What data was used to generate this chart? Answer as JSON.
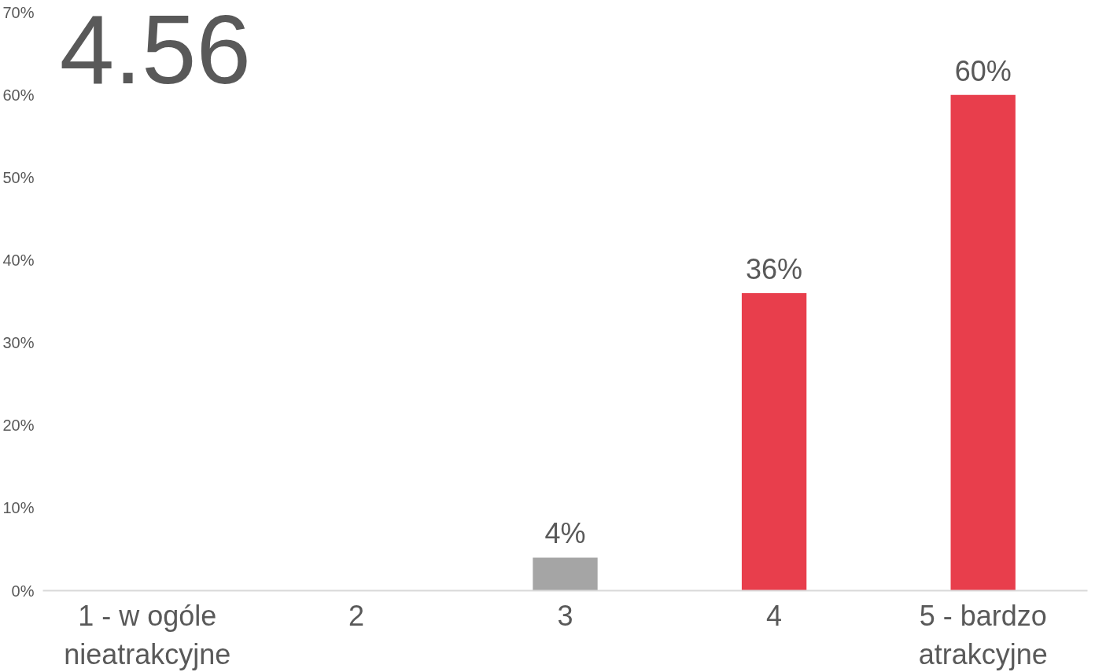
{
  "chart_data": {
    "type": "bar",
    "title": "4.56",
    "categories": [
      "1 - w ogóle nieatrakcyjne",
      "2",
      "3",
      "4",
      "5 - bardzo atrakcyjne"
    ],
    "values": [
      0,
      0,
      4,
      36,
      60
    ],
    "colors": [
      "#e83e4c",
      "#e83e4c",
      "#a5a5a5",
      "#e83e4c",
      "#e83e4c"
    ],
    "value_labels": [
      null,
      null,
      "4%",
      "36%",
      "60%"
    ],
    "ylim": [
      0,
      70
    ],
    "yticks": [
      {
        "value": 0,
        "label": "0%"
      },
      {
        "value": 10,
        "label": "10%"
      },
      {
        "value": 20,
        "label": "20%"
      },
      {
        "value": 30,
        "label": "30%"
      },
      {
        "value": 40,
        "label": "40%"
      },
      {
        "value": 50,
        "label": "50%"
      },
      {
        "value": 60,
        "label": "60%"
      },
      {
        "value": 70,
        "label": "70%"
      }
    ],
    "grid": false
  }
}
